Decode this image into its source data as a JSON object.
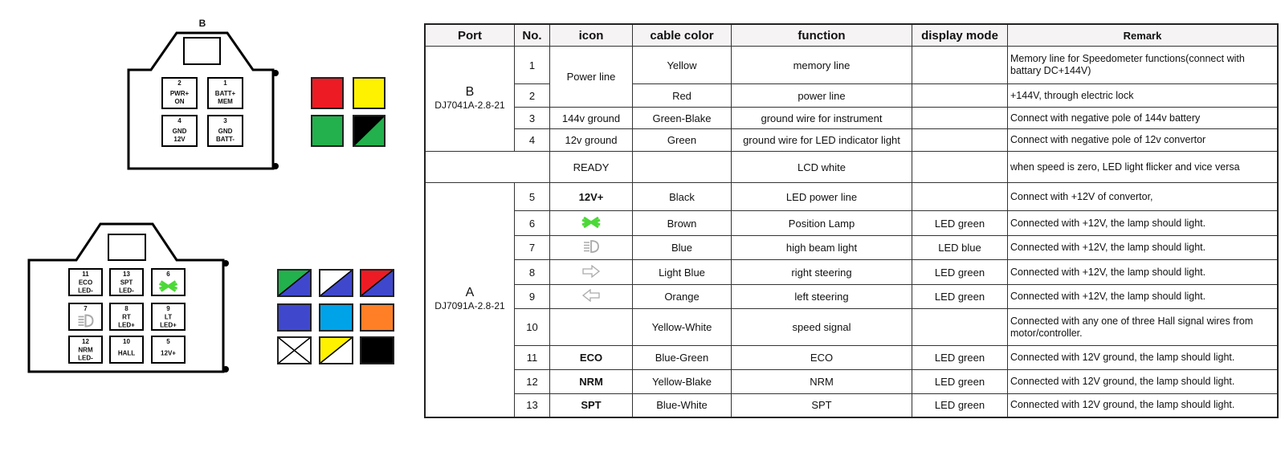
{
  "connector_b": {
    "label": "B",
    "pins": [
      {
        "no": "2",
        "l1": "PWR+",
        "l2": "ON"
      },
      {
        "no": "1",
        "l1": "BATT+",
        "l2": "MEM"
      },
      {
        "no": "4",
        "l1": "GND",
        "l2": "12V"
      },
      {
        "no": "3",
        "l1": "GND",
        "l2": "BATT-"
      }
    ],
    "swatches": [
      [
        "#ed1c24"
      ],
      [
        "#fff200"
      ],
      [
        "#22b14c"
      ],
      [
        "#000000",
        "#22b14c"
      ]
    ]
  },
  "connector_a": {
    "label": "A",
    "pins": [
      {
        "no": "11",
        "l1": "ECO",
        "l2": "LED-"
      },
      {
        "no": "13",
        "l1": "SPT",
        "l2": "LED-"
      },
      {
        "no": "6",
        "icon": "position-lamp"
      },
      {
        "no": "7",
        "icon": "high-beam"
      },
      {
        "no": "8",
        "l1": "RT",
        "l2": "LED+"
      },
      {
        "no": "9",
        "l1": "LT",
        "l2": "LED+"
      },
      {
        "no": "12",
        "l1": "NRM",
        "l2": "LED-"
      },
      {
        "no": "10",
        "l1": "HALL",
        "l2": ""
      },
      {
        "no": "5",
        "l1": "12V+",
        "l2": ""
      }
    ],
    "swatches": [
      [
        "#22b14c",
        "#3f48cc"
      ],
      [
        "#ffffff",
        "#3f48cc"
      ],
      [
        "#ed1c24",
        "#3f48cc"
      ],
      [
        "#3f48cc"
      ],
      [
        "#00a2e8"
      ],
      [
        "#ff7f27"
      ],
      [
        "cross"
      ],
      [
        "#fff200",
        "#ffffff"
      ],
      [
        "#000000"
      ]
    ]
  },
  "table": {
    "headers": [
      "Port",
      "No.",
      "icon",
      "cable color",
      "function",
      "display mode",
      "Remark"
    ],
    "port_b": {
      "name": "B",
      "model": "DJ7041A-2.8-21"
    },
    "port_a": {
      "name": "A",
      "model": "DJ7091A-2.8-21"
    },
    "power_line": "Power line",
    "rows_b": [
      {
        "no": "1",
        "cable": "Yellow",
        "function": "memory line",
        "mode": "",
        "remark": "Memory line for Speedometer functions(connect with battary DC+144V)"
      },
      {
        "no": "2",
        "cable": "Red",
        "function": "power line",
        "mode": "",
        "remark": "+144V, through electric lock"
      },
      {
        "no": "3",
        "icon": "144v ground",
        "cable": "Green-Blake",
        "function": "ground wire for instrument",
        "mode": "",
        "remark": "Connect with negative pole of 144v battery"
      },
      {
        "no": "4",
        "icon": "12v ground",
        "cable": "Green",
        "function": "ground wire for LED indicator light",
        "mode": "",
        "remark": "Connect with negative pole of 12v convertor"
      }
    ],
    "ready": {
      "icon": "READY",
      "cable": "",
      "function": "LCD white",
      "mode": "",
      "remark": "when speed is zero, LED light flicker and vice versa"
    },
    "rows_a": [
      {
        "no": "5",
        "icon": "12V+",
        "cable": "Black",
        "function": "LED power line",
        "mode": "",
        "remark": "Connect with +12V of convertor,"
      },
      {
        "no": "6",
        "icon_glyph": "position-lamp",
        "cable": "Brown",
        "function": "Position Lamp",
        "mode": "LED green",
        "remark": "Connected with +12V, the lamp should light."
      },
      {
        "no": "7",
        "icon_glyph": "high-beam",
        "cable": "Blue",
        "function": "high beam light",
        "mode": "LED blue",
        "remark": "Connected with +12V, the lamp should light."
      },
      {
        "no": "8",
        "icon_glyph": "right-arrow",
        "cable": "Light Blue",
        "function": "right steering",
        "mode": "LED green",
        "remark": "Connected with +12V, the lamp should light."
      },
      {
        "no": "9",
        "icon_glyph": "left-arrow",
        "cable": "Orange",
        "function": "left steering",
        "mode": "LED green",
        "remark": "Connected with +12V, the lamp should light."
      },
      {
        "no": "10",
        "icon": "",
        "cable": "Yellow-White",
        "function": "speed signal",
        "mode": "",
        "remark": "Connected with any one of three Hall signal wires from motor/controller."
      },
      {
        "no": "11",
        "icon": "ECO",
        "cable": "Blue-Green",
        "function": "ECO",
        "mode": "LED green",
        "remark": "Connected with 12V ground, the lamp should light."
      },
      {
        "no": "12",
        "icon": "NRM",
        "cable": "Yellow-Blake",
        "function": "NRM",
        "mode": "LED green",
        "remark": "Connected with 12V ground, the lamp should light."
      },
      {
        "no": "13",
        "icon": "SPT",
        "cable": "Blue-White",
        "function": "SPT",
        "mode": "LED green",
        "remark": "Connected with 12V ground, the lamp should light."
      }
    ]
  }
}
